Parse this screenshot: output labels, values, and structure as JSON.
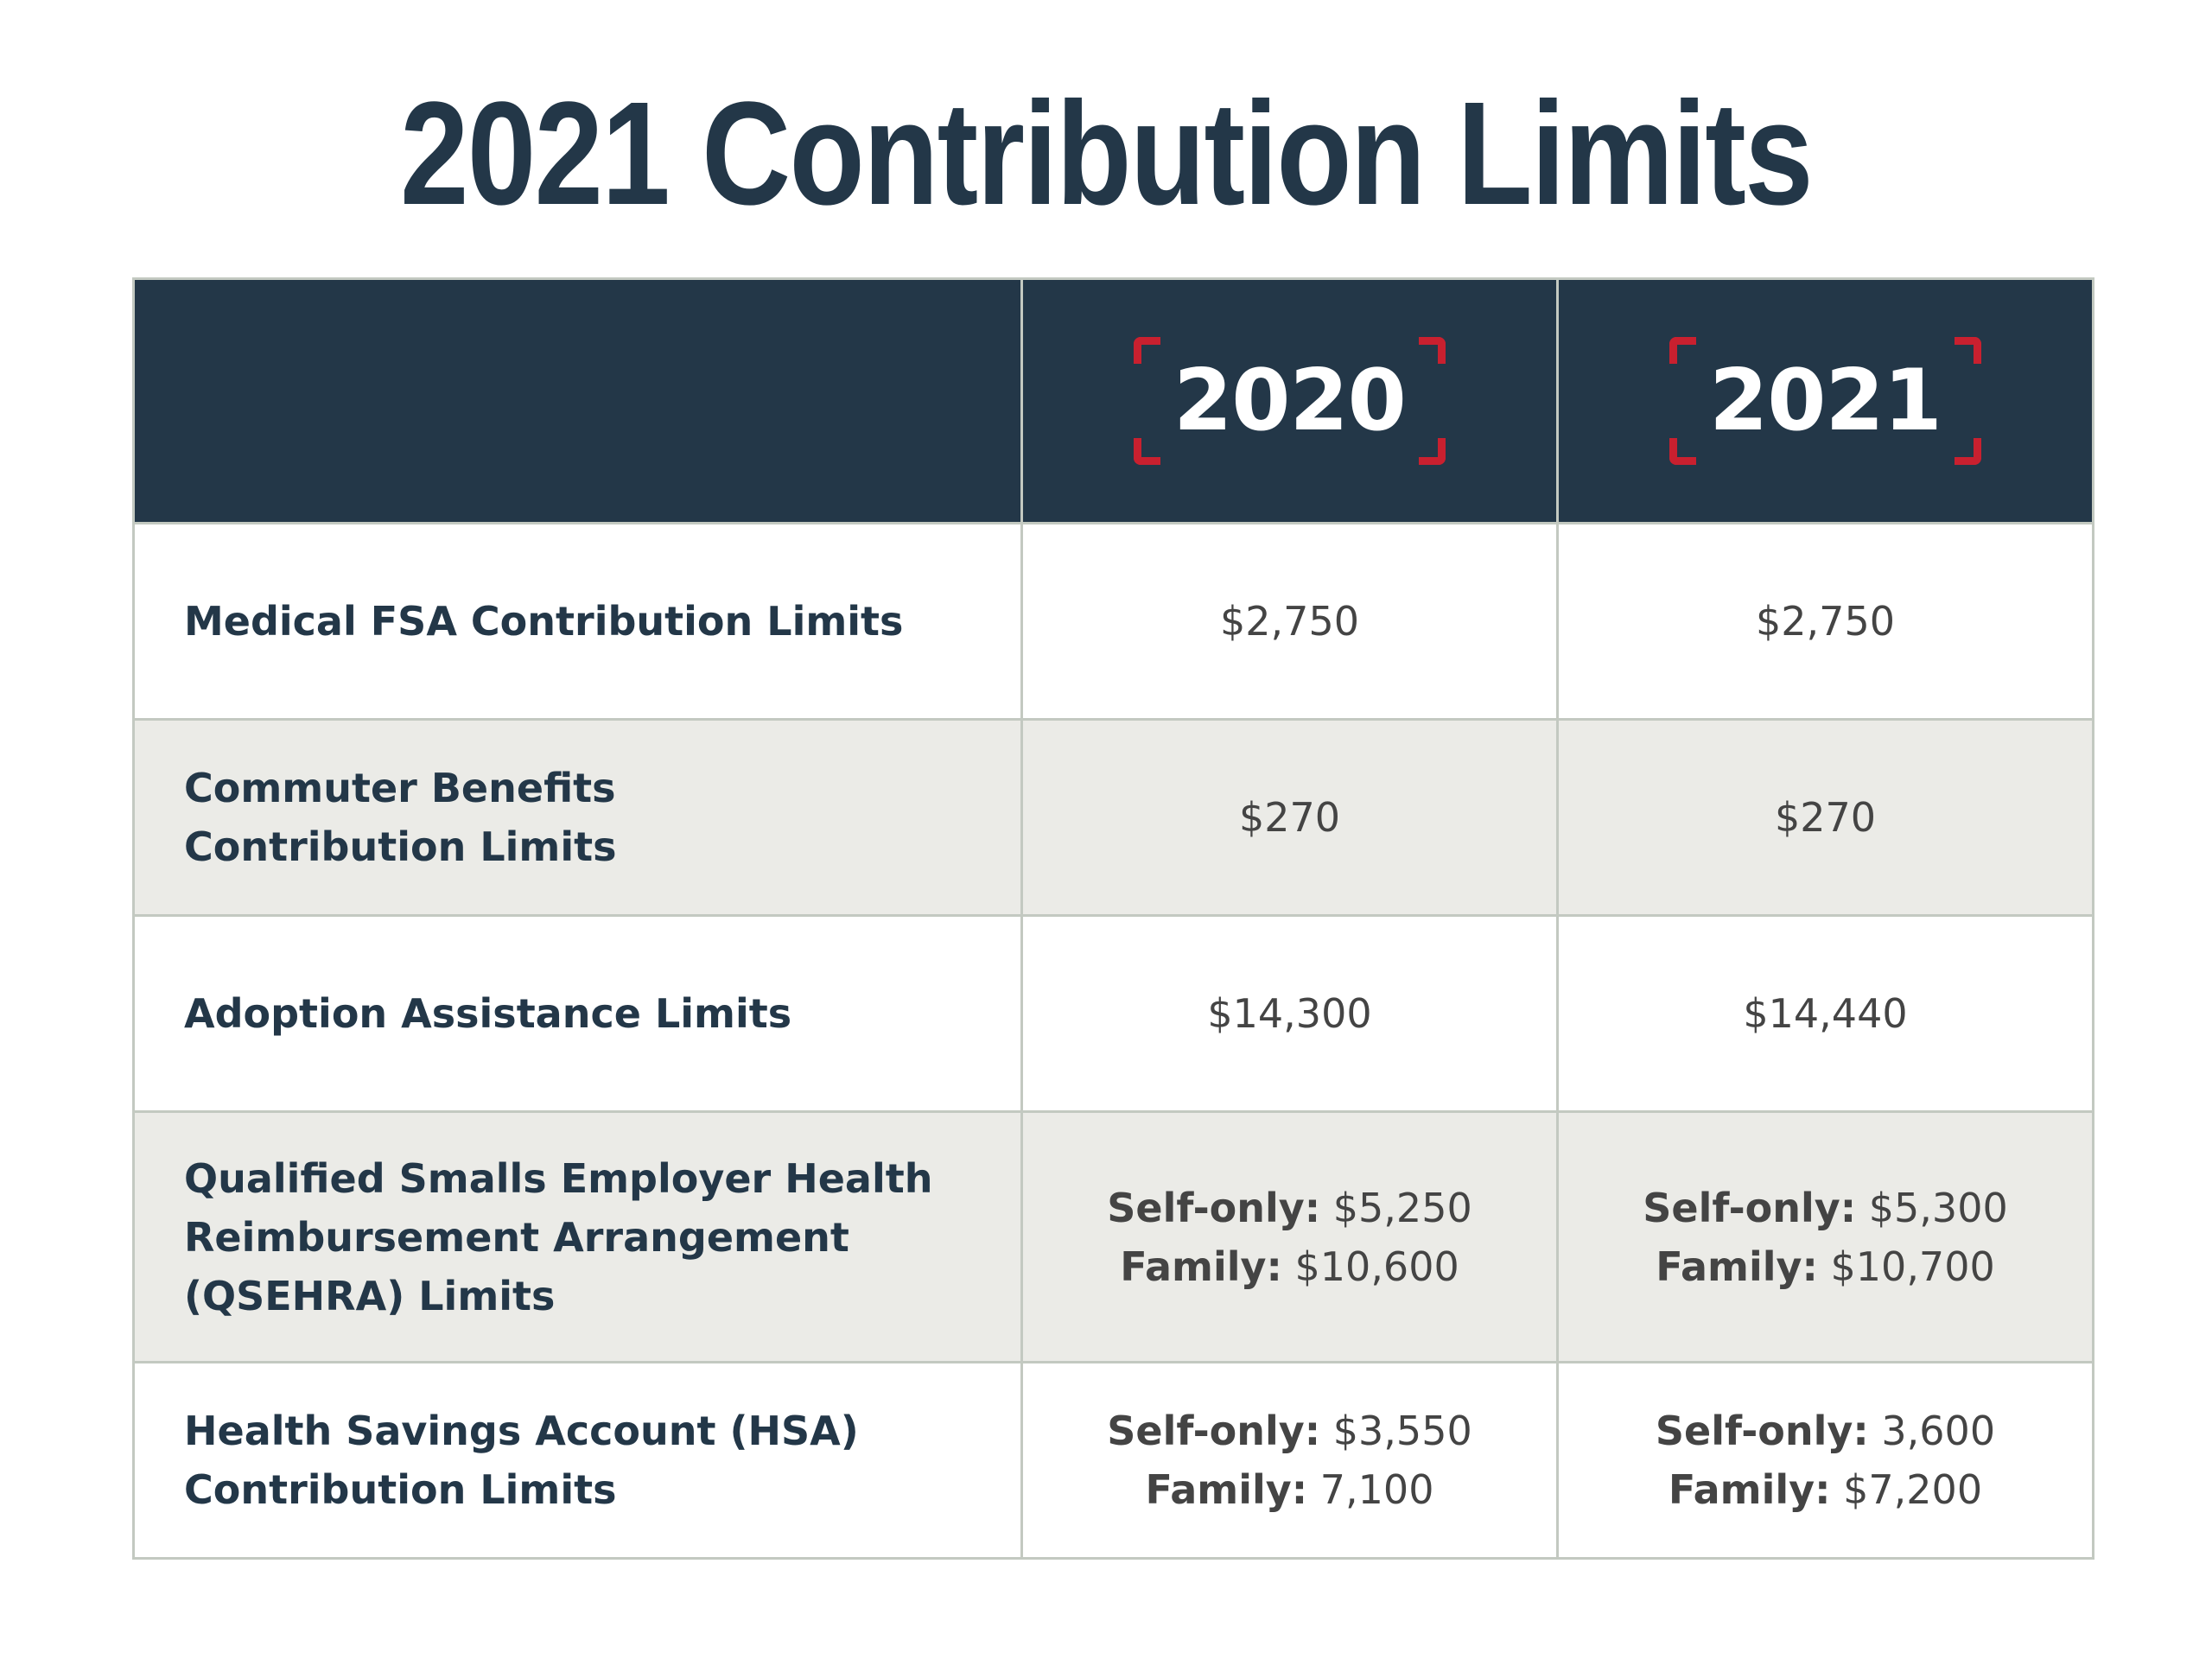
{
  "title": "2021 Contribution Limits",
  "header": {
    "year_a": "2020",
    "year_b": "2021"
  },
  "colors": {
    "navy": "#233748",
    "accent_red": "#c9202f",
    "row_alt": "#ebebe7",
    "border": "#c3c9c1"
  },
  "rows": [
    {
      "label_lines": [
        "Medical FSA Contribution Limits"
      ],
      "y2020": [
        "$2,750"
      ],
      "y2021": [
        "$2,750"
      ]
    },
    {
      "label_lines": [
        "Commuter Benefits",
        "Contribution Limits"
      ],
      "y2020": [
        "$270"
      ],
      "y2021": [
        "$270"
      ]
    },
    {
      "label_lines": [
        "Adoption Assistance Limits"
      ],
      "y2020": [
        "$14,300"
      ],
      "y2021": [
        "$14,440"
      ]
    },
    {
      "label_lines": [
        "Qualified Smalls Employer Health",
        "Reimbursement Arrangement",
        "(QSEHRA) Limits"
      ],
      "y2020": [
        {
          "key": "Self-only:",
          "value": " $5,250"
        },
        {
          "key": "Family:",
          "value": " $10,600"
        }
      ],
      "y2021": [
        {
          "key": "Self-only:",
          "value": " $5,300"
        },
        {
          "key": "Family:",
          "value": " $10,700"
        }
      ]
    },
    {
      "label_lines": [
        "Health Savings Account (HSA)",
        "Contribution Limits"
      ],
      "y2020": [
        {
          "key": "Self-only:",
          "value": " $3,550"
        },
        {
          "key": "Family:",
          "value": " 7,100"
        }
      ],
      "y2021": [
        {
          "key": "Self-only:",
          "value": " 3,600"
        },
        {
          "key": "Family:",
          "value": " $7,200"
        }
      ]
    }
  ]
}
